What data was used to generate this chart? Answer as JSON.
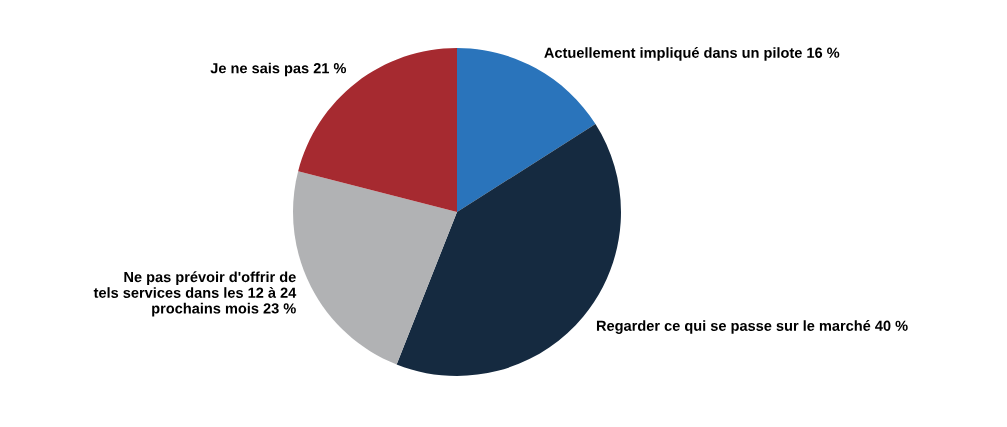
{
  "chart_data": {
    "type": "pie",
    "categories": [
      "Actuellement impliqué dans un pilote",
      "Regarder ce qui se passe sur le marché",
      "Ne pas prévoir d'offrir de\ntels services dans les 12 à 24\nprochains mois",
      "Je ne sais pas"
    ],
    "values": [
      16,
      40,
      23,
      21
    ],
    "value_labels": [
      "16 %",
      "40 %",
      "23 %",
      "21 %"
    ],
    "colors": [
      "#2a74bb",
      "#152a40",
      "#b1b2b4",
      "#a62a30"
    ],
    "legend": false
  }
}
